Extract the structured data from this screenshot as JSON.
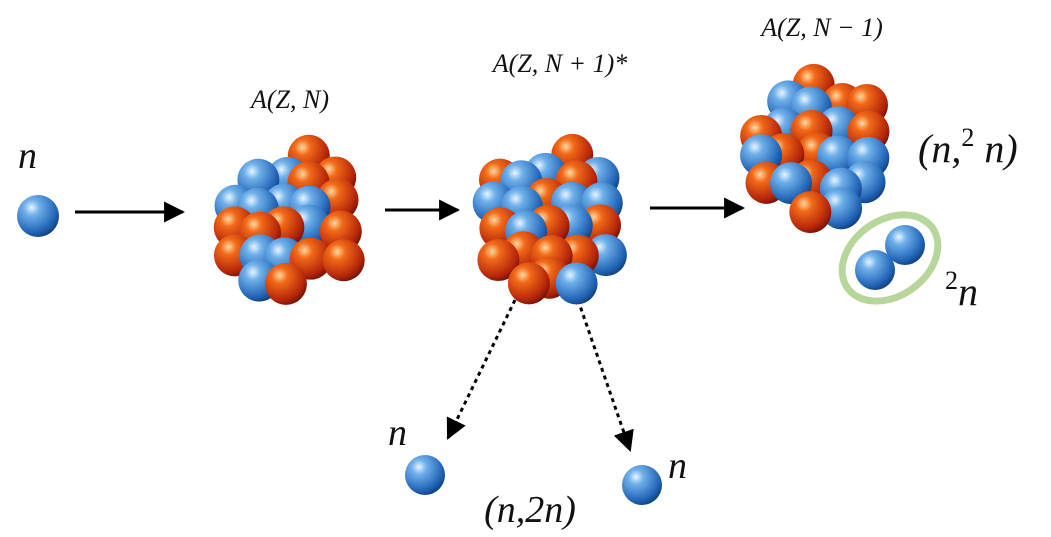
{
  "incoming": {
    "label": "n"
  },
  "nuclei": [
    {
      "label": "A(Z, N)"
    },
    {
      "label": "A(Z, N + 1)*"
    },
    {
      "label": "A(Z, N − 1)"
    }
  ],
  "dineutron": {
    "reaction": {
      "open": "(n,",
      "sup": "2",
      "close": " n)"
    },
    "label": {
      "sup": "2",
      "base": "n"
    }
  },
  "outgoing": [
    {
      "label": "n"
    },
    {
      "label": "n"
    }
  ],
  "reaction": "(n,2n)"
}
